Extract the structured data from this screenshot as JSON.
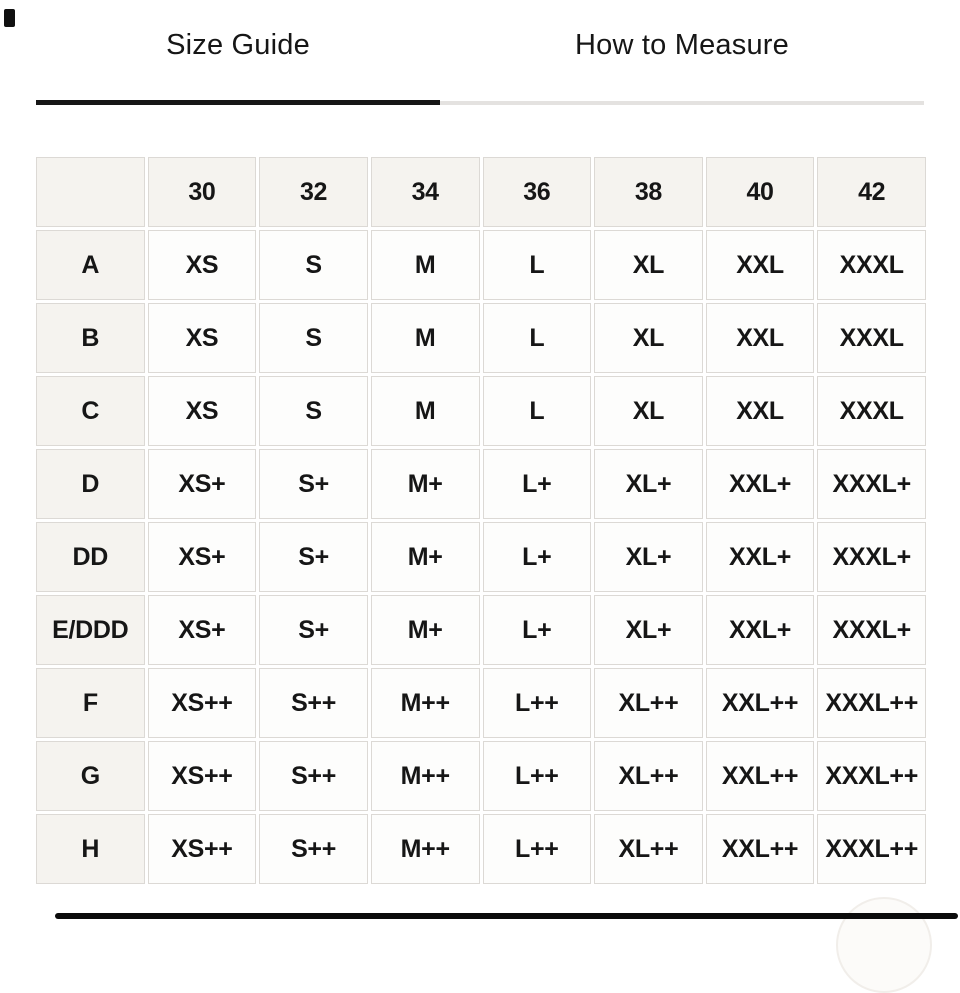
{
  "tabs": [
    {
      "id": "size-guide",
      "label": "Size Guide",
      "active": true
    },
    {
      "id": "how-to-measure",
      "label": "How to Measure",
      "active": false
    }
  ],
  "size_table": {
    "corner_label": "",
    "band_sizes": [
      "30",
      "32",
      "34",
      "36",
      "38",
      "40",
      "42"
    ],
    "rows": [
      {
        "cup": "A",
        "sizes": [
          "XS",
          "S",
          "M",
          "L",
          "XL",
          "XXL",
          "XXXL"
        ]
      },
      {
        "cup": "B",
        "sizes": [
          "XS",
          "S",
          "M",
          "L",
          "XL",
          "XXL",
          "XXXL"
        ]
      },
      {
        "cup": "C",
        "sizes": [
          "XS",
          "S",
          "M",
          "L",
          "XL",
          "XXL",
          "XXXL"
        ]
      },
      {
        "cup": "D",
        "sizes": [
          "XS+",
          "S+",
          "M+",
          "L+",
          "XL+",
          "XXL+",
          "XXXL+"
        ]
      },
      {
        "cup": "DD",
        "sizes": [
          "XS+",
          "S+",
          "M+",
          "L+",
          "XL+",
          "XXL+",
          "XXXL+"
        ]
      },
      {
        "cup": "E/DDD",
        "sizes": [
          "XS+",
          "S+",
          "M+",
          "L+",
          "XL+",
          "XXL+",
          "XXXL+"
        ]
      },
      {
        "cup": "F",
        "sizes": [
          "XS++",
          "S++",
          "M++",
          "L++",
          "XL++",
          "XXL++",
          "XXXL++"
        ]
      },
      {
        "cup": "G",
        "sizes": [
          "XS++",
          "S++",
          "M++",
          "L++",
          "XL++",
          "XXL++",
          "XXXL++"
        ]
      },
      {
        "cup": "H",
        "sizes": [
          "XS++",
          "S++",
          "M++",
          "L++",
          "XL++",
          "XXL++",
          "XXXL++"
        ]
      }
    ]
  },
  "colors": {
    "active_tab_underline": "#161616",
    "inactive_tab_underline": "#e4e2e0",
    "header_cell_bg": "#f5f3ef",
    "data_cell_bg": "#fdfdfc",
    "cell_border": "#dcd9d5",
    "text": "#161616",
    "scrollbar": "#0b0b0b"
  }
}
